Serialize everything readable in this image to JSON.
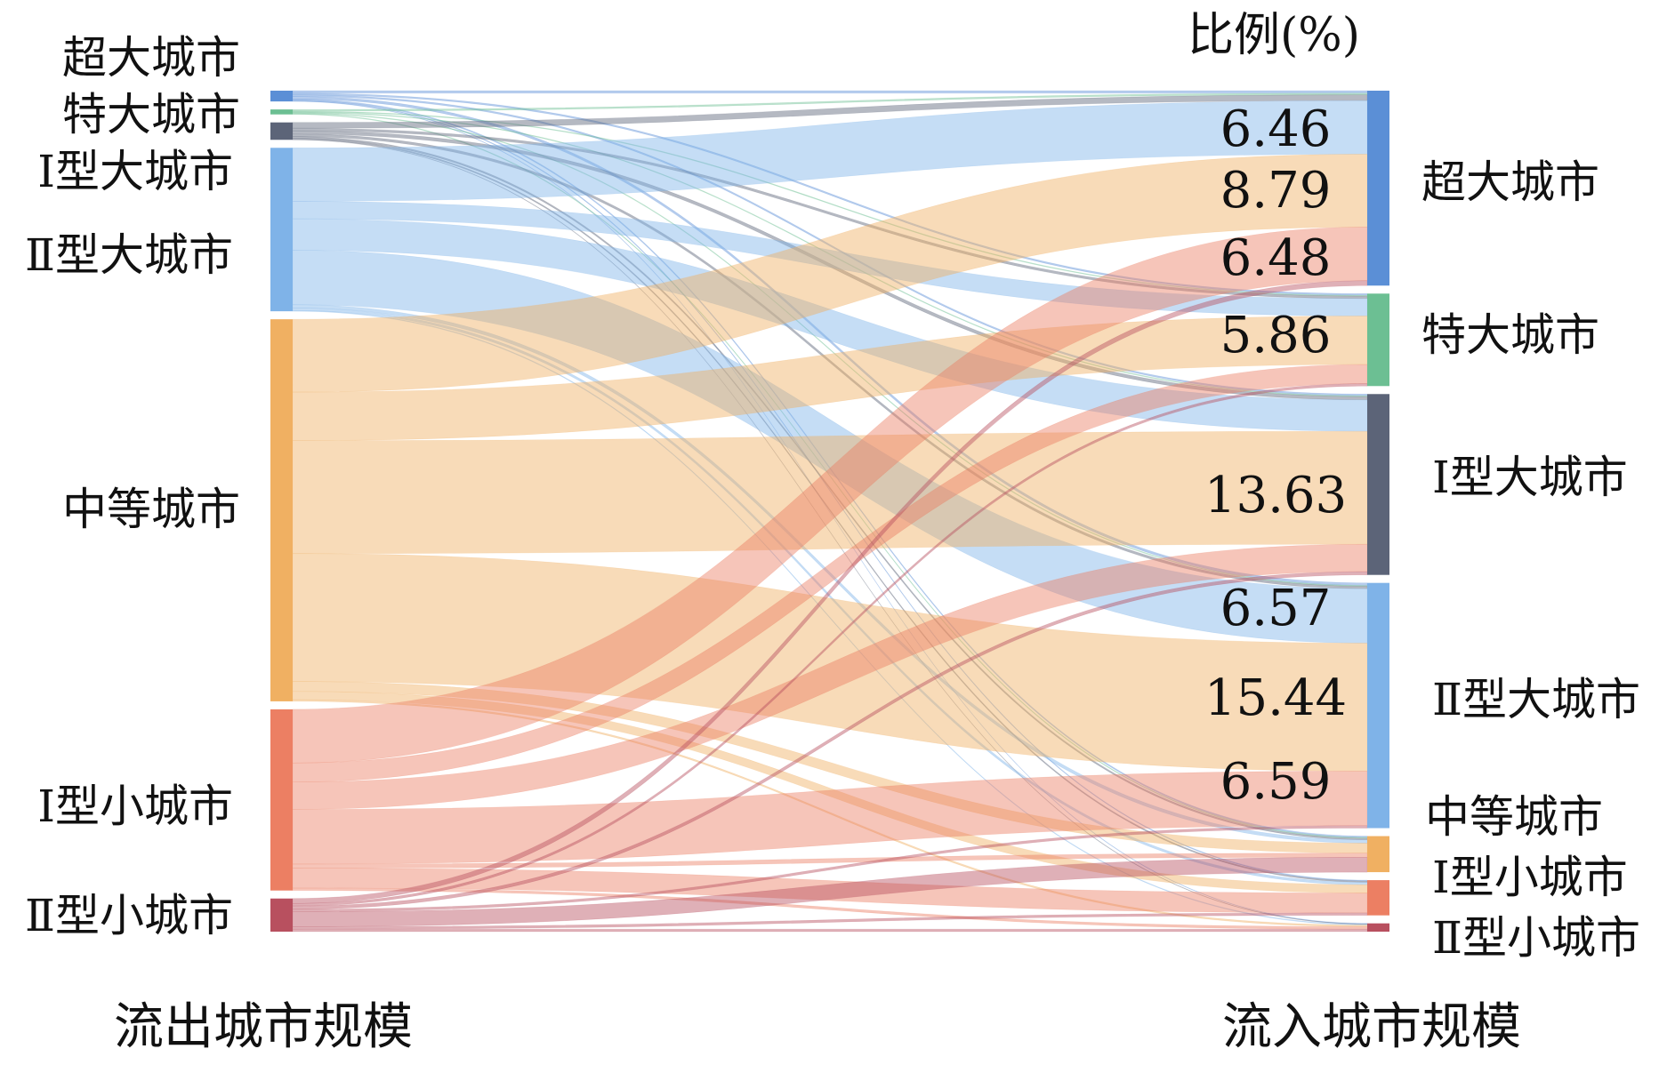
{
  "header": {
    "ratio_label": "比例(%)"
  },
  "axis": {
    "source_title": "流出城市规模",
    "target_title": "流入城市规模"
  },
  "source_nodes": [
    {
      "id": "s1",
      "label": "超大城市",
      "color": "#5b8fd6"
    },
    {
      "id": "s2",
      "label": "特大城市",
      "color": "#6cbf93"
    },
    {
      "id": "s3",
      "label": "Ⅰ型大城市",
      "color": "#5c6478"
    },
    {
      "id": "s4",
      "label": "Ⅱ型大城市",
      "color": "#7fb3e8"
    },
    {
      "id": "s5",
      "label": "中等城市",
      "color": "#f0b062"
    },
    {
      "id": "s6",
      "label": "Ⅰ型小城市",
      "color": "#ec7f63"
    },
    {
      "id": "s7",
      "label": "Ⅱ型小城市",
      "color": "#b8505f"
    }
  ],
  "target_nodes": [
    {
      "id": "t1",
      "label": "超大城市",
      "color": "#5b8fd6"
    },
    {
      "id": "t2",
      "label": "特大城市",
      "color": "#6cbf93"
    },
    {
      "id": "t3",
      "label": "Ⅰ型大城市",
      "color": "#5c6478"
    },
    {
      "id": "t4",
      "label": "Ⅱ型大城市",
      "color": "#7fb3e8"
    },
    {
      "id": "t5",
      "label": "中等城市",
      "color": "#f0b062"
    },
    {
      "id": "t6",
      "label": "Ⅰ型小城市",
      "color": "#ec7f63"
    },
    {
      "id": "t7",
      "label": "Ⅱ型小城市",
      "color": "#b8505f"
    }
  ],
  "value_labels": [
    {
      "target": "t1",
      "source": "s4",
      "text": "6.46"
    },
    {
      "target": "t1",
      "source": "s5",
      "text": "8.79"
    },
    {
      "target": "t1",
      "source": "s6",
      "text": "6.48"
    },
    {
      "target": "t2",
      "source": "s5",
      "text": "5.86"
    },
    {
      "target": "t3",
      "source": "s5",
      "text": "13.63"
    },
    {
      "target": "t4",
      "source": "s4",
      "text": "6.57"
    },
    {
      "target": "t4",
      "source": "s5",
      "text": "15.44"
    },
    {
      "target": "t4",
      "source": "s6",
      "text": "6.59"
    }
  ],
  "chart_data": {
    "type": "sankey",
    "value_unit": "%",
    "links": [
      {
        "source": "超大城市",
        "target": "超大城市",
        "value": 0.3
      },
      {
        "source": "超大城市",
        "target": "特大城市",
        "value": 0.2
      },
      {
        "source": "超大城市",
        "target": "Ⅰ型大城市",
        "value": 0.2
      },
      {
        "source": "超大城市",
        "target": "Ⅱ型大城市",
        "value": 0.3
      },
      {
        "source": "超大城市",
        "target": "中等城市",
        "value": 0.15
      },
      {
        "source": "超大城市",
        "target": "Ⅰ型小城市",
        "value": 0.1
      },
      {
        "source": "超大城市",
        "target": "Ⅱ型小城市",
        "value": 0.05
      },
      {
        "source": "特大城市",
        "target": "超大城市",
        "value": 0.2
      },
      {
        "source": "特大城市",
        "target": "特大城市",
        "value": 0.1
      },
      {
        "source": "特大城市",
        "target": "Ⅰ型大城市",
        "value": 0.1
      },
      {
        "source": "特大城市",
        "target": "Ⅱ型大城市",
        "value": 0.1
      },
      {
        "source": "特大城市",
        "target": "中等城市",
        "value": 0.1
      },
      {
        "source": "Ⅰ型大城市",
        "target": "超大城市",
        "value": 0.7
      },
      {
        "source": "Ⅰ型大城市",
        "target": "特大城市",
        "value": 0.3
      },
      {
        "source": "Ⅰ型大城市",
        "target": "Ⅰ型大城市",
        "value": 0.4
      },
      {
        "source": "Ⅰ型大城市",
        "target": "Ⅱ型大城市",
        "value": 0.3
      },
      {
        "source": "Ⅰ型大城市",
        "target": "中等城市",
        "value": 0.2
      },
      {
        "source": "Ⅰ型大城市",
        "target": "Ⅰ型小城市",
        "value": 0.15
      },
      {
        "source": "Ⅰ型大城市",
        "target": "Ⅱ型小城市",
        "value": 0.05
      },
      {
        "source": "Ⅱ型大城市",
        "target": "超大城市",
        "value": 6.46
      },
      {
        "source": "Ⅱ型大城市",
        "target": "特大城市",
        "value": 2.1
      },
      {
        "source": "Ⅱ型大城市",
        "target": "Ⅰ型大城市",
        "value": 3.8
      },
      {
        "source": "Ⅱ型大城市",
        "target": "Ⅱ型大城市",
        "value": 6.57
      },
      {
        "source": "Ⅱ型大城市",
        "target": "中等城市",
        "value": 0.4
      },
      {
        "source": "Ⅱ型大城市",
        "target": "Ⅰ型小城市",
        "value": 0.3
      },
      {
        "source": "Ⅱ型大城市",
        "target": "Ⅱ型小城市",
        "value": 0.1
      },
      {
        "source": "中等城市",
        "target": "超大城市",
        "value": 8.79
      },
      {
        "source": "中等城市",
        "target": "特大城市",
        "value": 5.86
      },
      {
        "source": "中等城市",
        "target": "Ⅰ型大城市",
        "value": 13.63
      },
      {
        "source": "中等城市",
        "target": "Ⅱ型大城市",
        "value": 15.44
      },
      {
        "source": "中等城市",
        "target": "中等城市",
        "value": 1.2
      },
      {
        "source": "中等城市",
        "target": "Ⅰ型小城市",
        "value": 1.0
      },
      {
        "source": "中等城市",
        "target": "Ⅱ型小城市",
        "value": 0.2
      },
      {
        "source": "Ⅰ型小城市",
        "target": "超大城市",
        "value": 6.48
      },
      {
        "source": "Ⅰ型小城市",
        "target": "特大城市",
        "value": 2.3
      },
      {
        "source": "Ⅰ型小城市",
        "target": "Ⅰ型大城市",
        "value": 3.3
      },
      {
        "source": "Ⅰ型小城市",
        "target": "Ⅱ型大城市",
        "value": 6.59
      },
      {
        "source": "Ⅰ型小城市",
        "target": "中等城市",
        "value": 0.5
      },
      {
        "source": "Ⅰ型小城市",
        "target": "Ⅰ型小城市",
        "value": 2.4
      },
      {
        "source": "Ⅰ型小城市",
        "target": "Ⅱ型小城市",
        "value": 0.3
      },
      {
        "source": "Ⅱ型小城市",
        "target": "超大城市",
        "value": 0.6
      },
      {
        "source": "Ⅱ型小城市",
        "target": "特大城市",
        "value": 0.3
      },
      {
        "source": "Ⅱ型小城市",
        "target": "Ⅰ型大城市",
        "value": 0.4
      },
      {
        "source": "Ⅱ型小城市",
        "target": "Ⅱ型大城市",
        "value": 0.3
      },
      {
        "source": "Ⅱ型小城市",
        "target": "中等城市",
        "value": 1.8
      },
      {
        "source": "Ⅱ型小城市",
        "target": "Ⅰ型小城市",
        "value": 0.3
      },
      {
        "source": "Ⅱ型小城市",
        "target": "Ⅱ型小城市",
        "value": 0.3
      }
    ]
  }
}
